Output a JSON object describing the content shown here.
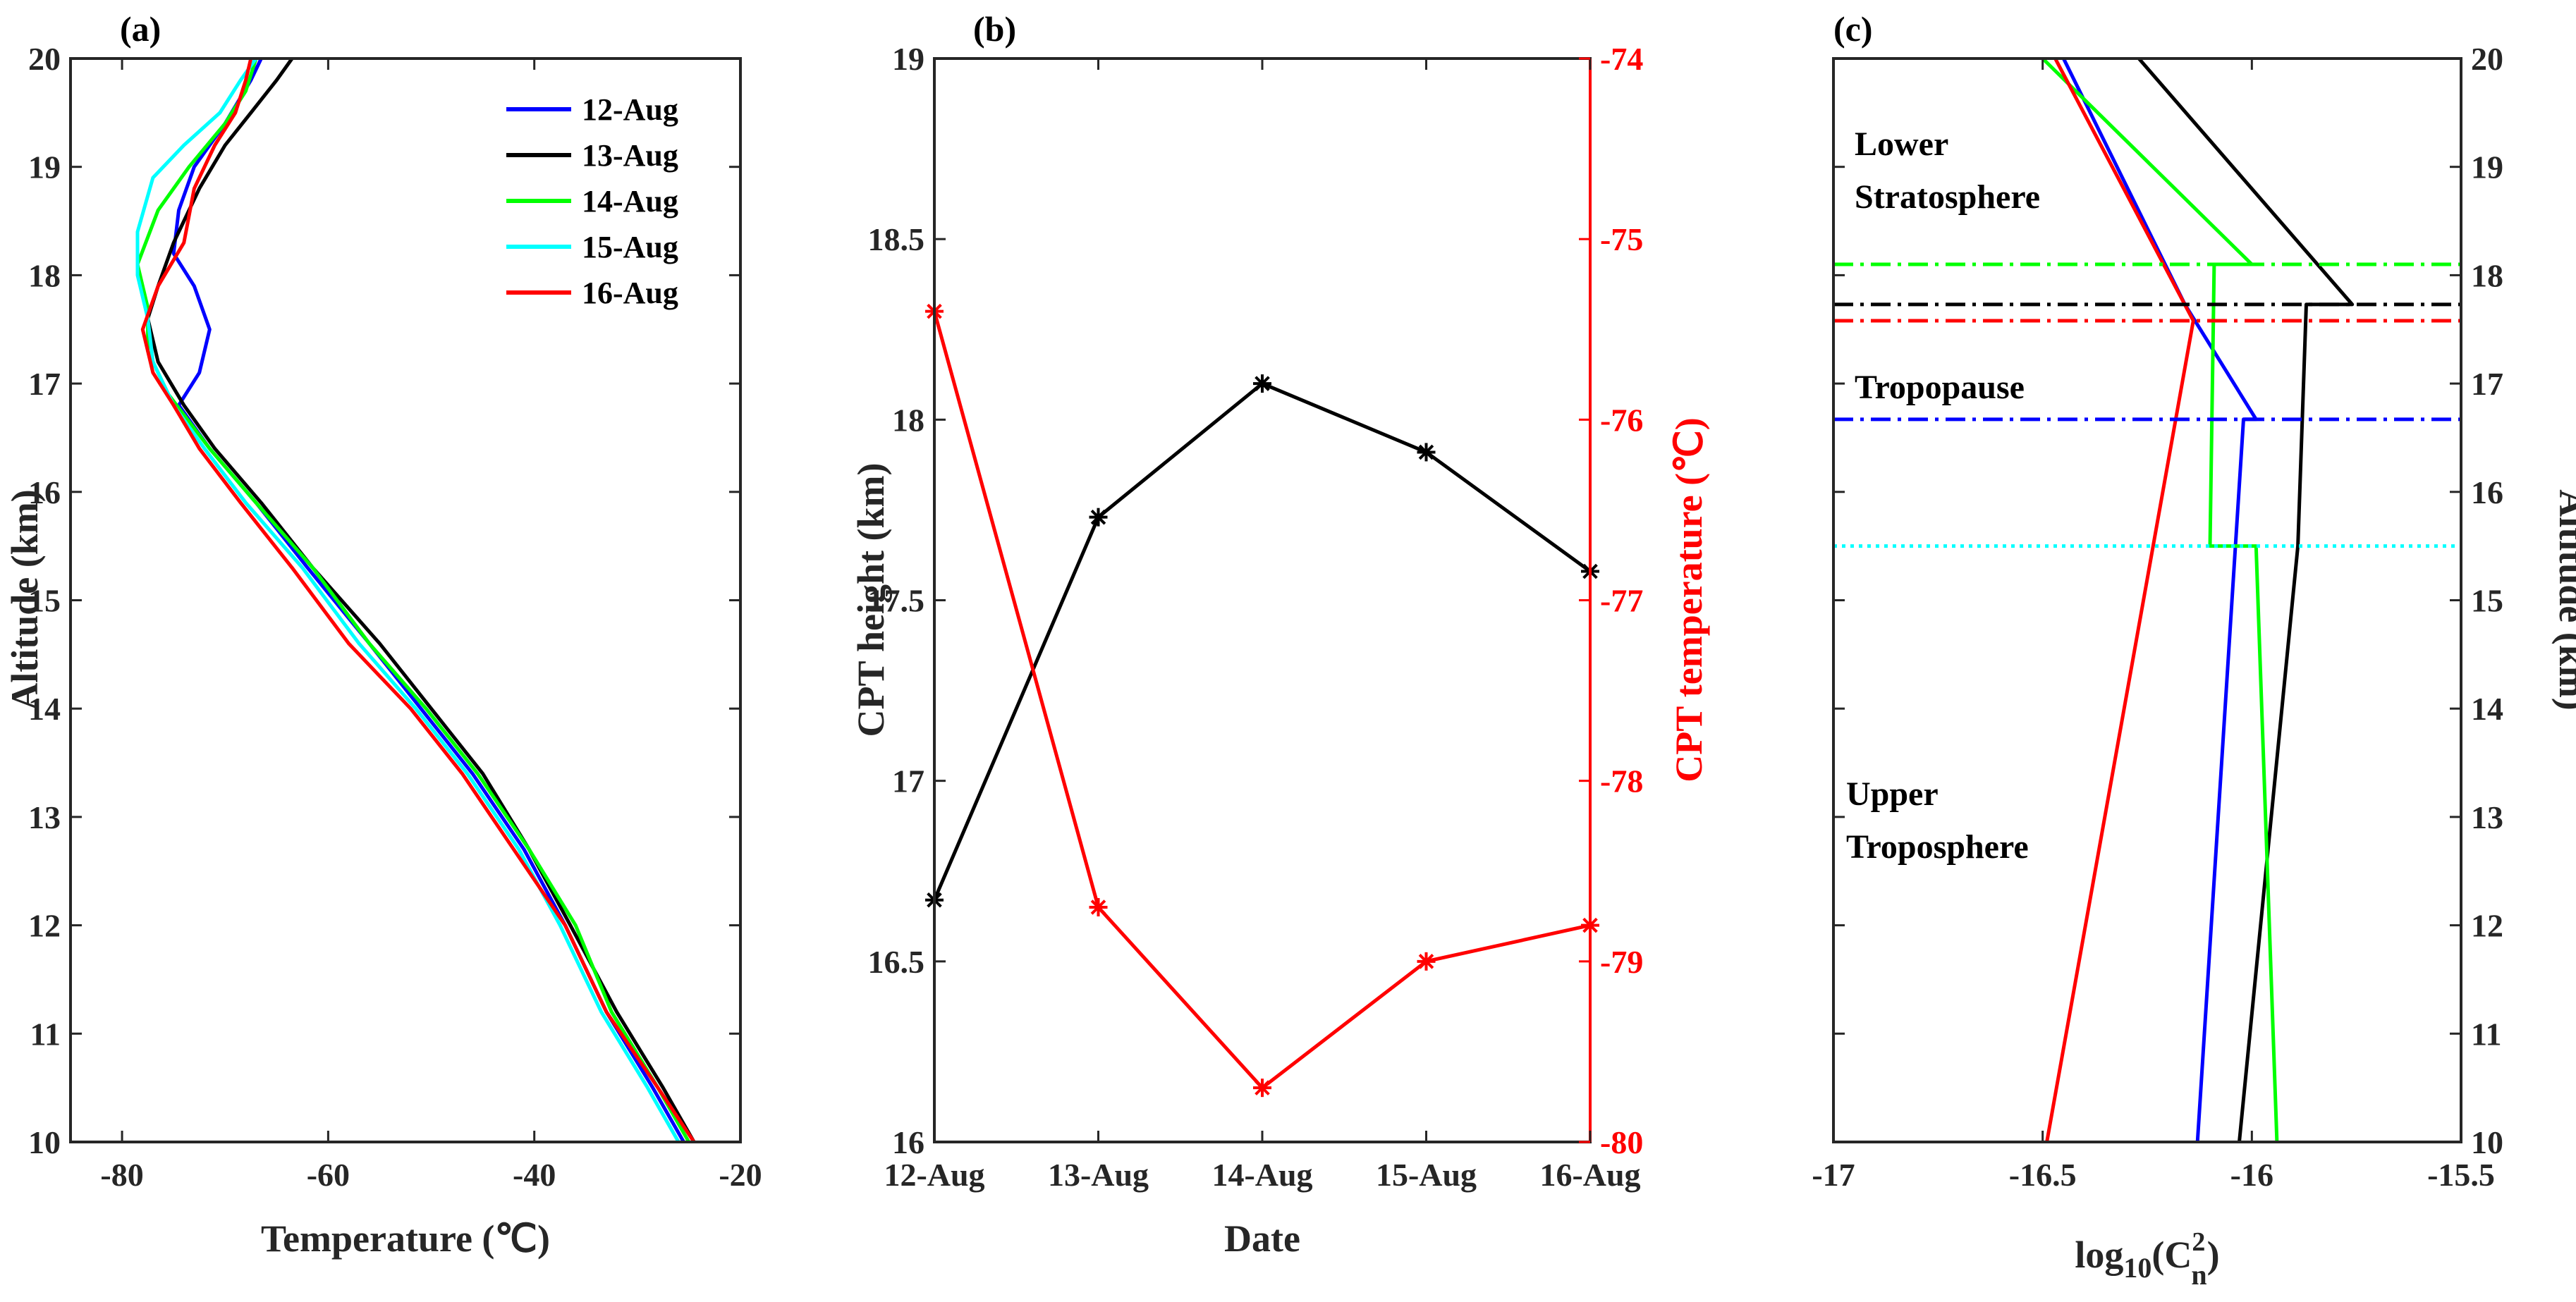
{
  "chart_data": [
    {
      "panel": "(a)",
      "type": "line",
      "xlabel": "Temperature (℃)",
      "ylabel": "Altitude (km)",
      "xlim": [
        -85,
        -20
      ],
      "ylim": [
        10,
        20
      ],
      "xticks": [
        -80,
        -60,
        -40,
        -20
      ],
      "yticks": [
        10,
        11,
        12,
        13,
        14,
        15,
        16,
        17,
        18,
        19,
        20
      ],
      "legend_position": "top-right",
      "series": [
        {
          "name": "12-Aug",
          "color": "#0000ff",
          "points": [
            [
              -25.5,
              10
            ],
            [
              -28.5,
              10.5
            ],
            [
              -33,
              11.2
            ],
            [
              -37,
              12
            ],
            [
              -41,
              12.7
            ],
            [
              -46,
              13.4
            ],
            [
              -51,
              14
            ],
            [
              -56,
              14.6
            ],
            [
              -62,
              15.3
            ],
            [
              -67,
              15.9
            ],
            [
              -71.5,
              16.4
            ],
            [
              -74.5,
              16.8
            ],
            [
              -72.5,
              17.1
            ],
            [
              -71.5,
              17.5
            ],
            [
              -73,
              17.9
            ],
            [
              -75,
              18.2
            ],
            [
              -74.5,
              18.6
            ],
            [
              -73,
              19
            ],
            [
              -70,
              19.4
            ],
            [
              -67.5,
              19.8
            ],
            [
              -66.5,
              20
            ]
          ]
        },
        {
          "name": "13-Aug",
          "color": "#000000",
          "points": [
            [
              -24.5,
              10
            ],
            [
              -27.5,
              10.5
            ],
            [
              -32,
              11.2
            ],
            [
              -36.5,
              12
            ],
            [
              -40.5,
              12.7
            ],
            [
              -45,
              13.4
            ],
            [
              -50,
              14
            ],
            [
              -55,
              14.6
            ],
            [
              -61.5,
              15.3
            ],
            [
              -66.5,
              15.9
            ],
            [
              -71,
              16.4
            ],
            [
              -74,
              16.8
            ],
            [
              -76.5,
              17.2
            ],
            [
              -77.5,
              17.6
            ],
            [
              -76.5,
              17.9
            ],
            [
              -75,
              18.3
            ],
            [
              -72.5,
              18.8
            ],
            [
              -70,
              19.2
            ],
            [
              -67.5,
              19.5
            ],
            [
              -65,
              19.8
            ],
            [
              -63.5,
              20
            ]
          ]
        },
        {
          "name": "14-Aug",
          "color": "#00ff00",
          "points": [
            [
              -25,
              10
            ],
            [
              -28,
              10.5
            ],
            [
              -32.5,
              11.2
            ],
            [
              -36,
              12
            ],
            [
              -40.5,
              12.7
            ],
            [
              -45.5,
              13.4
            ],
            [
              -50.5,
              14
            ],
            [
              -56,
              14.6
            ],
            [
              -61.5,
              15.3
            ],
            [
              -67,
              15.9
            ],
            [
              -71.5,
              16.4
            ],
            [
              -75.5,
              16.9
            ],
            [
              -77.5,
              17.3
            ],
            [
              -77.5,
              17.7
            ],
            [
              -78.5,
              18.1
            ],
            [
              -76.5,
              18.6
            ],
            [
              -73.5,
              19
            ],
            [
              -70,
              19.4
            ],
            [
              -68,
              19.7
            ],
            [
              -67,
              20
            ]
          ]
        },
        {
          "name": "15-Aug",
          "color": "#00ffff",
          "points": [
            [
              -26,
              10
            ],
            [
              -29,
              10.5
            ],
            [
              -33.5,
              11.2
            ],
            [
              -37.5,
              12
            ],
            [
              -41.5,
              12.7
            ],
            [
              -46.5,
              13.4
            ],
            [
              -51.5,
              14
            ],
            [
              -57,
              14.6
            ],
            [
              -62.5,
              15.3
            ],
            [
              -68,
              15.9
            ],
            [
              -72,
              16.4
            ],
            [
              -75,
              16.8
            ],
            [
              -77,
              17.2
            ],
            [
              -77.5,
              17.6
            ],
            [
              -78.5,
              18
            ],
            [
              -78.5,
              18.4
            ],
            [
              -77,
              18.9
            ],
            [
              -74,
              19.2
            ],
            [
              -70.5,
              19.5
            ],
            [
              -68.5,
              19.8
            ],
            [
              -67,
              20
            ]
          ]
        },
        {
          "name": "16-Aug",
          "color": "#ff0000",
          "points": [
            [
              -24.5,
              10
            ],
            [
              -28,
              10.5
            ],
            [
              -33,
              11.2
            ],
            [
              -37,
              12
            ],
            [
              -42,
              12.7
            ],
            [
              -47,
              13.4
            ],
            [
              -52,
              14
            ],
            [
              -58,
              14.6
            ],
            [
              -63.5,
              15.3
            ],
            [
              -68.5,
              15.9
            ],
            [
              -72.5,
              16.4
            ],
            [
              -75,
              16.8
            ],
            [
              -77,
              17.1
            ],
            [
              -78,
              17.5
            ],
            [
              -76.5,
              17.9
            ],
            [
              -74,
              18.3
            ],
            [
              -73,
              18.8
            ],
            [
              -71,
              19.2
            ],
            [
              -69,
              19.5
            ],
            [
              -68,
              19.8
            ],
            [
              -67.5,
              20
            ]
          ]
        }
      ]
    },
    {
      "panel": "(b)",
      "type": "line",
      "xlabel": "Date",
      "ylabel": "CPT height (km)",
      "ylabel_right": "CPT temperature (℃)",
      "categories": [
        "12-Aug",
        "13-Aug",
        "14-Aug",
        "15-Aug",
        "16-Aug"
      ],
      "ylim": [
        16,
        19
      ],
      "yticks": [
        "16",
        "16.5",
        "17",
        "17.5",
        "18",
        "18.5",
        "19"
      ],
      "ylim_right": [
        -80,
        -74
      ],
      "yticks_right": [
        "-80",
        "-79",
        "-78",
        "-77",
        "-76",
        "-75",
        "-74"
      ],
      "series": [
        {
          "name": "CPT height",
          "axis": "left",
          "color": "#000000",
          "marker": "asterisk",
          "values": [
            16.67,
            17.73,
            18.1,
            17.91,
            17.58
          ]
        },
        {
          "name": "CPT temperature",
          "axis": "right",
          "color": "#ff0000",
          "marker": "asterisk",
          "values": [
            -75.4,
            -78.7,
            -79.7,
            -79.0,
            -78.8
          ]
        }
      ]
    },
    {
      "panel": "(c)",
      "type": "line",
      "xlabel_main": "log",
      "xlabel_sub1": "10",
      "xlabel_mid": "(C",
      "xlabel_sup": "2",
      "xlabel_sub2": "n",
      "xlabel_end": ")",
      "ylabel_right": "Altitude (km)",
      "xlim": [
        -17,
        -15.5
      ],
      "ylim": [
        10,
        20
      ],
      "xticks": [
        "-17",
        "-16.5",
        "-16",
        "-15.5"
      ],
      "yticks": [
        "10",
        "11",
        "12",
        "13",
        "14",
        "15",
        "16",
        "17",
        "18",
        "19",
        "20"
      ],
      "annotations": {
        "lower_line1": "Lower",
        "lower_line2": "Stratosphere",
        "tropopause": "Tropopause",
        "upper_line1": "Upper",
        "upper_line2": "Troposphere"
      },
      "tropopause_lines": [
        {
          "name": "14-Aug",
          "color": "#00ff00",
          "altitude": 18.1,
          "style": "dashdot"
        },
        {
          "name": "13-Aug",
          "color": "#000000",
          "altitude": 17.73,
          "style": "dashdot"
        },
        {
          "name": "16-Aug",
          "color": "#ff0000",
          "altitude": 17.58,
          "style": "dashdot"
        },
        {
          "name": "12-Aug",
          "color": "#0000ff",
          "altitude": 16.67,
          "style": "dashdot"
        },
        {
          "name": "15-Aug",
          "color": "#00ffff",
          "altitude": 15.5,
          "style": "dotted"
        }
      ],
      "series": [
        {
          "name": "12-Aug",
          "color": "#0000ff",
          "points": [
            [
              -16.13,
              10
            ],
            [
              -16.02,
              16.67
            ],
            [
              -15.99,
              16.67
            ],
            [
              -16.16,
              17.73
            ],
            [
              -16.45,
              20
            ]
          ]
        },
        {
          "name": "13-Aug",
          "color": "#000000",
          "points": [
            [
              -16.03,
              10
            ],
            [
              -15.89,
              15.5
            ],
            [
              -15.87,
              17.73
            ],
            [
              -15.76,
              17.73
            ],
            [
              -16.27,
              20
            ]
          ]
        },
        {
          "name": "14-Aug",
          "color": "#00ff00",
          "points": [
            [
              -15.94,
              10
            ],
            [
              -15.99,
              15.5
            ],
            [
              -16.1,
              15.5
            ],
            [
              -16.09,
              18.1
            ],
            [
              -16,
              18.1
            ],
            [
              -16.5,
              20
            ]
          ]
        },
        {
          "name": "16-Aug",
          "color": "#ff0000",
          "points": [
            [
              -16.49,
              10
            ],
            [
              -16.14,
              17.58
            ],
            [
              -16.47,
              20
            ]
          ]
        }
      ]
    }
  ]
}
